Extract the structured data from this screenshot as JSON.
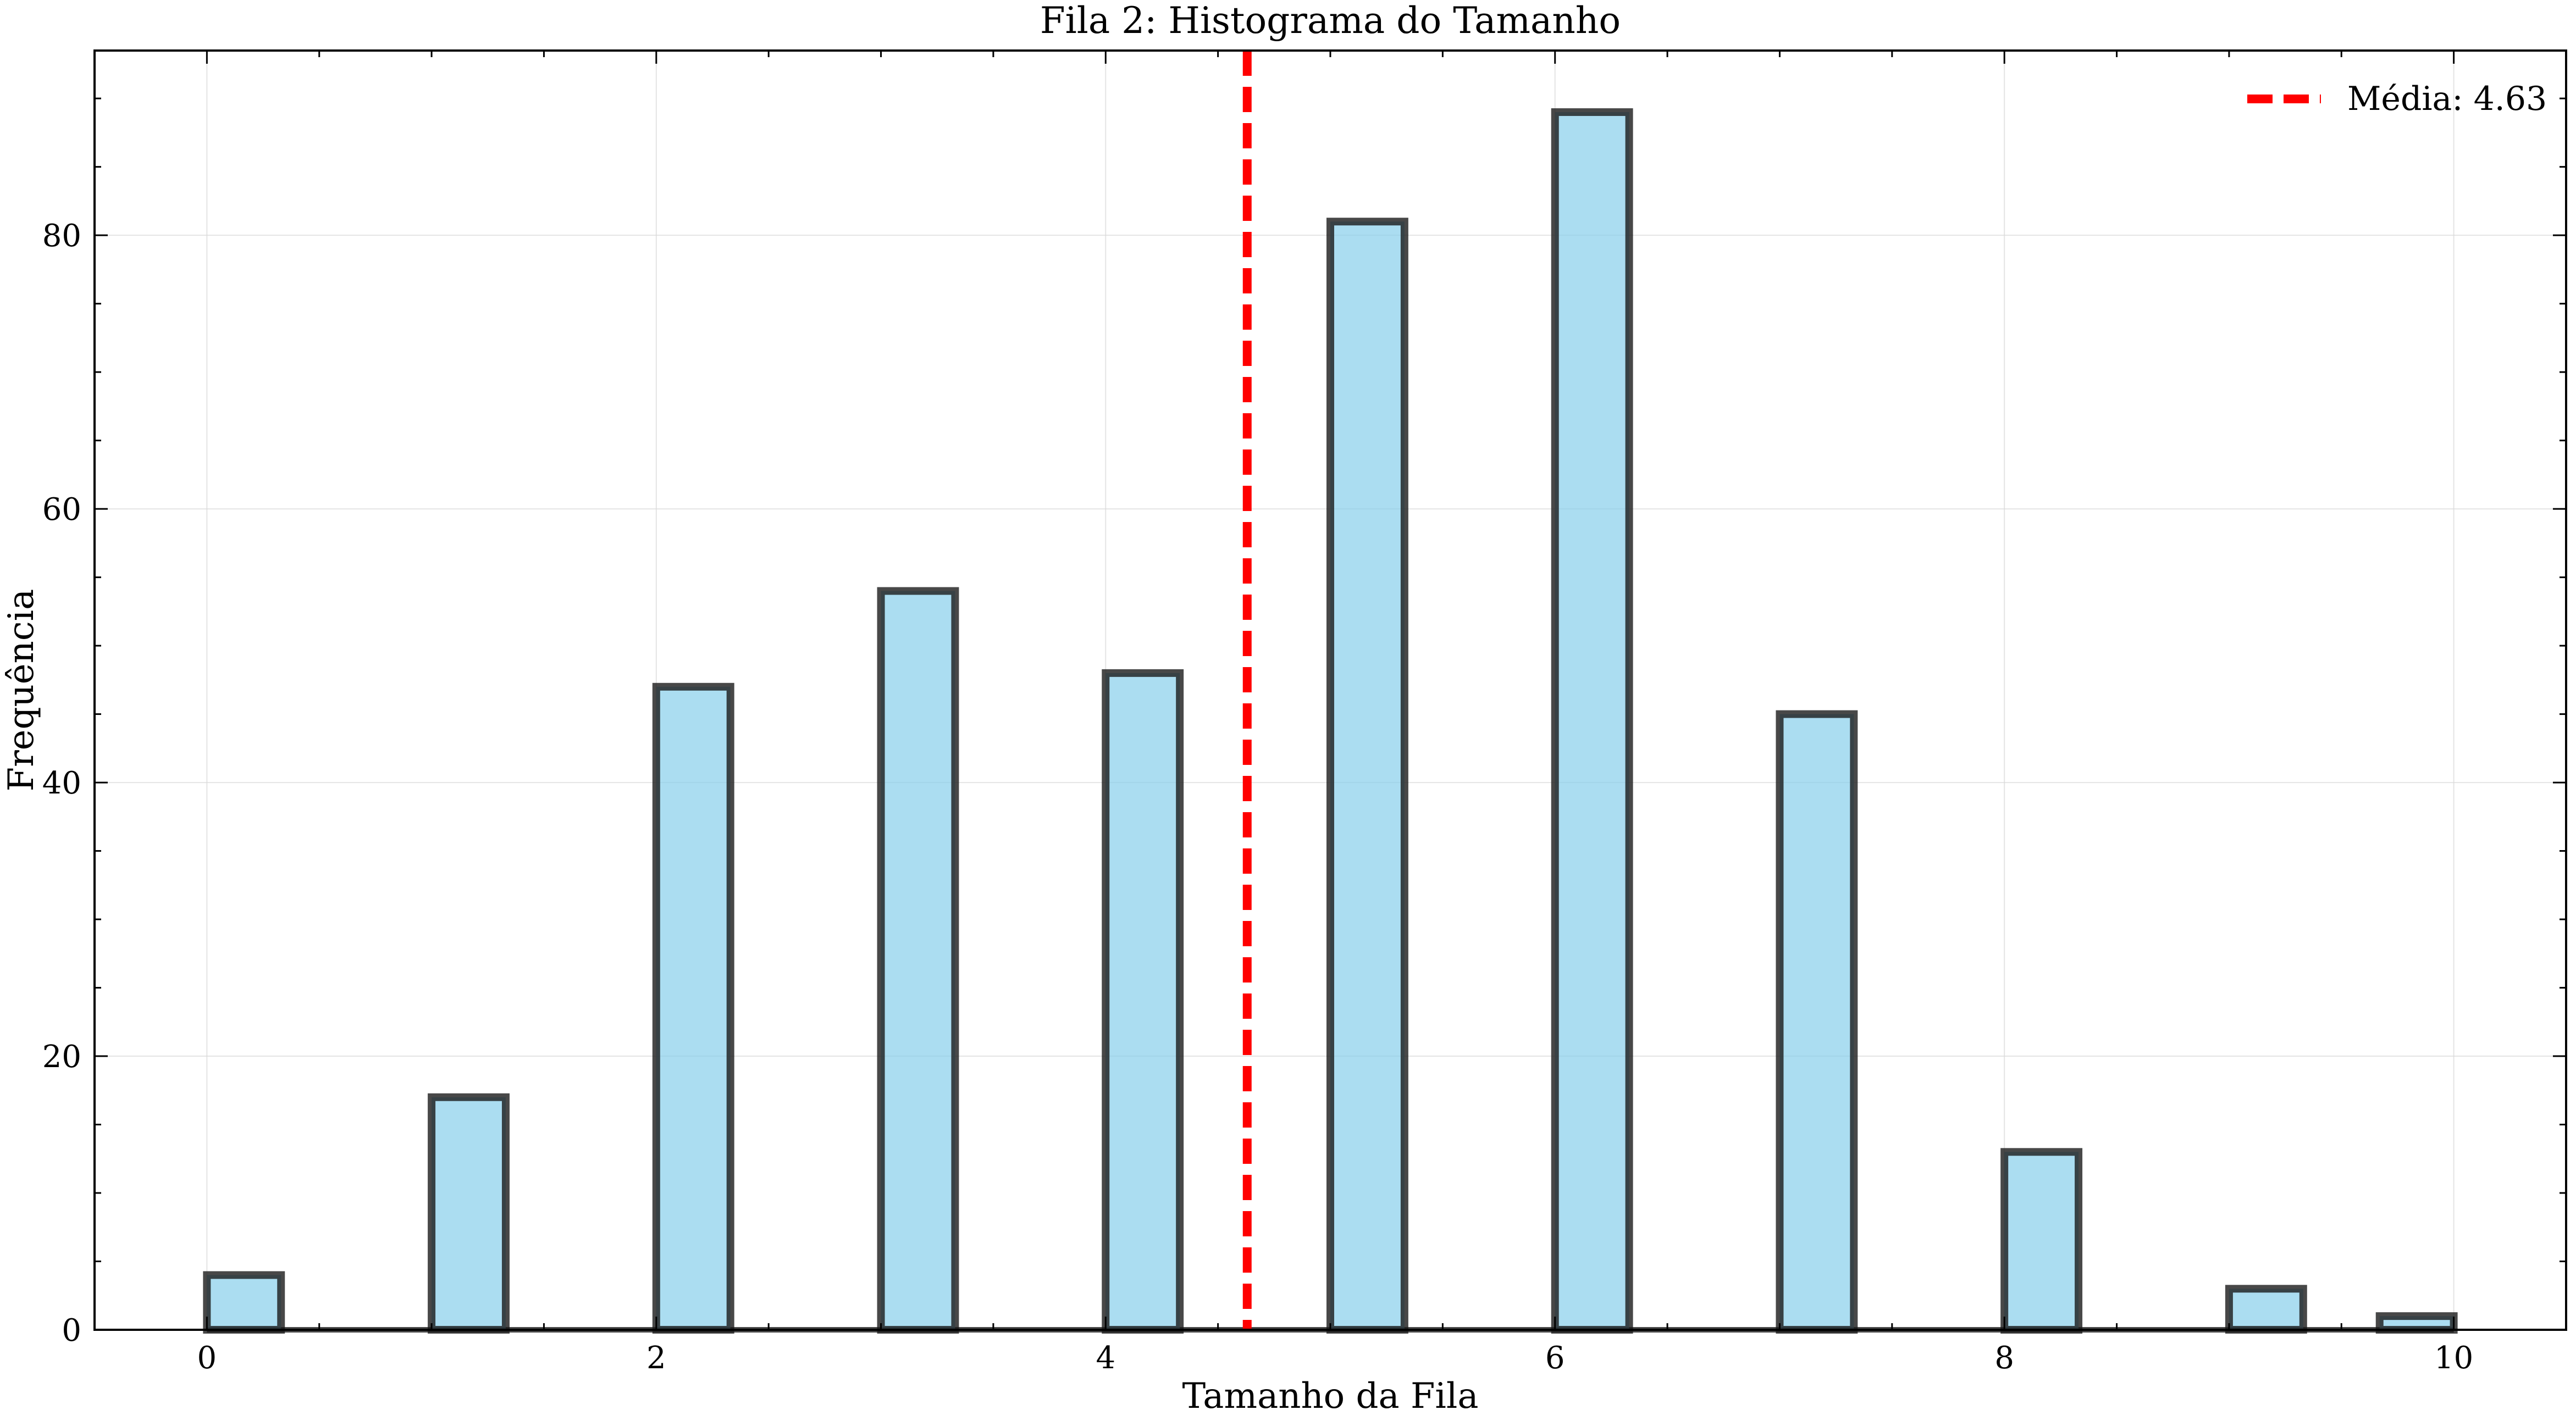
{
  "chart_data": {
    "type": "bar",
    "title": "Fila 2: Histograma do Tamanho",
    "xlabel": "Tamanho da Fila",
    "ylabel": "Frequência",
    "xlim": [
      -0.5,
      10.5
    ],
    "ylim": [
      0,
      93.5
    ],
    "xticks": [
      0,
      2,
      4,
      6,
      8,
      10
    ],
    "yticks": [
      0,
      20,
      40,
      60,
      80
    ],
    "bins": [
      {
        "x0": 0.0,
        "x1": 0.33,
        "value": 4
      },
      {
        "x0": 1.0,
        "x1": 1.33,
        "value": 17
      },
      {
        "x0": 2.0,
        "x1": 2.33,
        "value": 47
      },
      {
        "x0": 3.0,
        "x1": 3.33,
        "value": 54
      },
      {
        "x0": 4.0,
        "x1": 4.33,
        "value": 48
      },
      {
        "x0": 5.0,
        "x1": 5.33,
        "value": 81
      },
      {
        "x0": 6.0,
        "x1": 6.33,
        "value": 89
      },
      {
        "x0": 7.0,
        "x1": 7.33,
        "value": 45
      },
      {
        "x0": 8.0,
        "x1": 8.33,
        "value": 13
      },
      {
        "x0": 9.0,
        "x1": 9.33,
        "value": 3
      },
      {
        "x0": 9.67,
        "x1": 10.0,
        "value": 1
      }
    ],
    "mean": {
      "value": 4.63,
      "label": "Média: 4.63",
      "color": "#ff0000",
      "style": "dashed"
    },
    "bar_color": "#87CEEB",
    "bar_edge_color": "#1a1a1a",
    "grid": true,
    "legend_position": "top-right"
  }
}
